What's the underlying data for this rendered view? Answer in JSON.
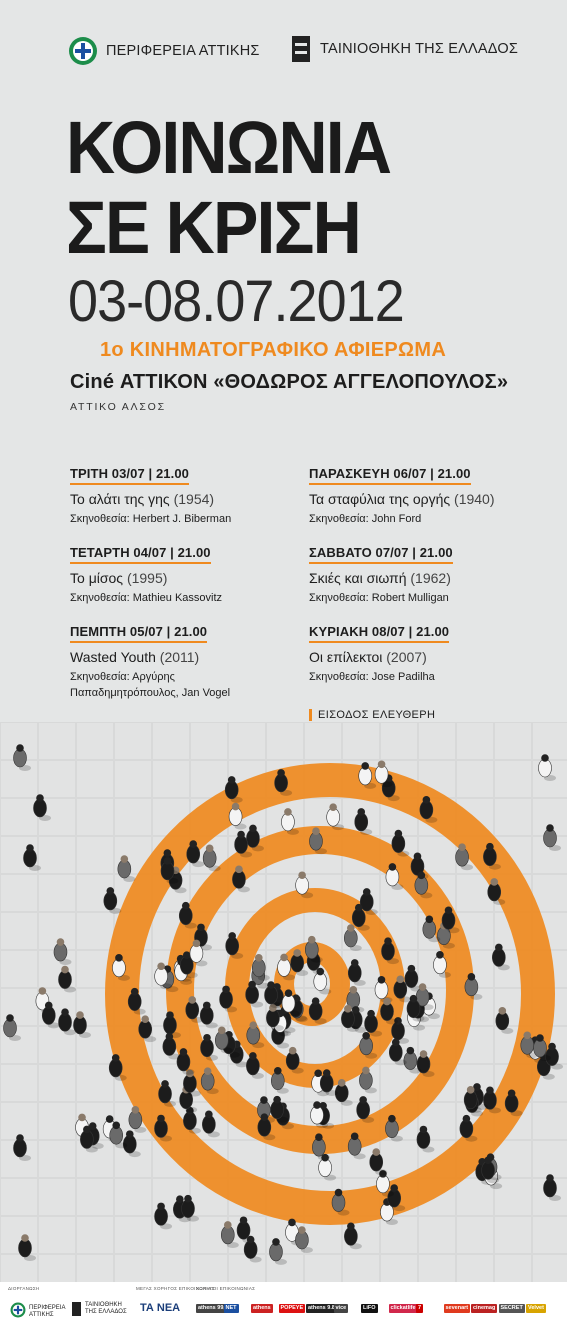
{
  "header": {
    "left_logo": "ΠΕΡΙΦΕΡΕΙΑ ΑΤΤΙΚΗΣ",
    "right_logo": "ΤΑΙΝΙΟΘΗΚΗ ΤΗΣ ΕΛΛΑΔΟΣ"
  },
  "title": {
    "line1": "ΚΟΙΝΩΝΙΑ",
    "line2": "ΣΕ ΚΡΙΣΗ"
  },
  "dates": "03-08.07.2012",
  "subtitle": "1ο ΚΙΝΗΜΑΤΟΓΡΑΦΙΚΟ ΑΦΙΕΡΩΜΑ",
  "venue": "Ciné ΑΤΤΙΚΟΝ «ΘΟΔΩΡΟΣ ΑΓΓΕΛΟΠΟΥΛΟΣ»",
  "venue_sub": "ΑΤΤΙΚΟ ΑΛΣΟΣ",
  "program": {
    "left": [
      {
        "day": "ΤΡΙΤΗ 03/07 | 21.00",
        "film": "Το αλάτι της γης",
        "year": "(1954)",
        "director": "Σκηνοθεσία: Herbert J. Biberman"
      },
      {
        "day": "ΤΕΤΑΡΤΗ 04/07 | 21.00",
        "film": "Το μίσος",
        "year": "(1995)",
        "director": "Σκηνοθεσία: Mathieu Kassovitz"
      },
      {
        "day": "ΠΕΜΠΤΗ 05/07 | 21.00",
        "film": "Wasted Youth",
        "year": "(2011)",
        "director": "Σκηνοθεσία: Αργύρης",
        "director2": "Παπαδημητρόπουλος, Jan Vogel"
      }
    ],
    "right": [
      {
        "day": "ΠΑΡΑΣΚΕΥΗ 06/07 | 21.00",
        "film": "Τα σταφύλια της οργής",
        "year": "(1940)",
        "director": "Σκηνοθεσία: John Ford"
      },
      {
        "day": "ΣΑΒΒΑΤΟ 07/07 | 21.00",
        "film": "Σκιές και σιωπή",
        "year": "(1962)",
        "director": "Σκηνοθεσία: Robert Mulligan"
      },
      {
        "day": "ΚΥΡΙΑΚΗ 08/07 | 21.00",
        "film": "Οι επίλεκτοι",
        "year": "(2007)",
        "director": "Σκηνοθεσία: Jose Padilha"
      }
    ],
    "free_entry": "ΕΙΣΟΔΟΣ ΕΛΕΥΘΕΡΗ"
  },
  "footer": {
    "organizers_caption": "ΔΙΟΡΓΑΝΩΣΗ",
    "org1": "ΠΕΡΙΦΕΡΕΙΑ ΑΤΤΙΚΗΣ",
    "org2": "ΤΑΙΝΙΟΘΗΚΗ ΤΗΣ ΕΛΛΑΔΟΣ",
    "media_caption": "ΜΕΓΑΣ ΧΟΡΗΓΟΣ ΕΠΙΚΟΙΝΩΝΙΑΣ",
    "media": "ΤΑ ΝΕΑ",
    "sponsors_caption": "ΧΟΡΗΓΟΙ ΕΠΙΚΟΙΝΩΝΙΑΣ",
    "sponsors": [
      "athens 99,5",
      "NET",
      "athens",
      "POPEYE",
      "athens 9.84",
      "vice",
      "LiFO",
      "clickatlife",
      "7",
      "sevenart",
      "cinemag",
      "SECRET",
      "Velvet"
    ]
  },
  "colors": {
    "accent": "#ef8a1f",
    "background": "#e4e6e6",
    "ink": "#1d1d1d"
  }
}
